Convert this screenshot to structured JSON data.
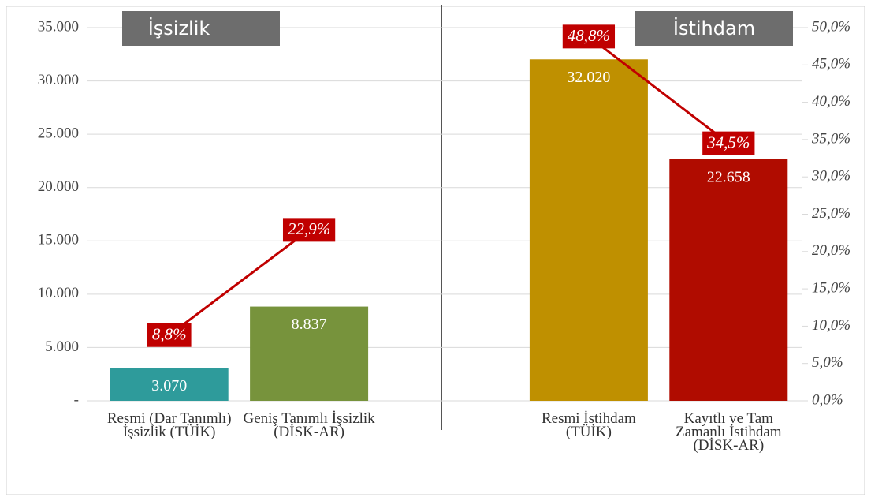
{
  "chart_data": {
    "type": "bar",
    "categories": [
      "Resmi (Dar Tanımlı) İşsizlik (TÜİK)",
      "Geniş Tanımlı İşsizlik (DİSK-AR)",
      null,
      "Resmi İstihdam (TÜİK)",
      "Kayıtlı ve Tam Zamanlı İstihdam (DİSK-AR)"
    ],
    "annotations": [
      "İşsizlik",
      "İstihdam"
    ],
    "series": [
      {
        "type": "bar",
        "colors": [
          "#2e9b9b",
          "#77933c",
          "#bf9000",
          "#b00c00"
        ],
        "colors_for": [
          0,
          1,
          3,
          4
        ],
        "values": [
          3070,
          8837,
          null,
          32020,
          22658
        ],
        "value_labels": [
          "3.070",
          "8.837",
          null,
          "32.020",
          "22.658"
        ]
      },
      {
        "type": "line",
        "axis": "y2",
        "color": "#c00000",
        "values": [
          8.8,
          22.9,
          null,
          48.8,
          34.5
        ],
        "value_labels": [
          "8,8%",
          "22,9%",
          null,
          "48,8%",
          "34,5%"
        ]
      }
    ],
    "ylim": [
      0,
      35000
    ],
    "yticks": [
      {
        "value": 0,
        "label": "-"
      },
      {
        "value": 5000,
        "label": "5.000"
      },
      {
        "value": 10000,
        "label": "10.000"
      },
      {
        "value": 15000,
        "label": "15.000"
      },
      {
        "value": 20000,
        "label": "20.000"
      },
      {
        "value": 25000,
        "label": "25.000"
      },
      {
        "value": 30000,
        "label": "30.000"
      },
      {
        "value": 35000,
        "label": "35.000"
      }
    ],
    "y2lim": [
      0,
      50
    ],
    "y2ticks": [
      {
        "value": 0,
        "label": "0,0%"
      },
      {
        "value": 5,
        "label": "5,0%"
      },
      {
        "value": 10,
        "label": "10,0%"
      },
      {
        "value": 15,
        "label": "15,0%"
      },
      {
        "value": 20,
        "label": "20,0%"
      },
      {
        "value": 25,
        "label": "25,0%"
      },
      {
        "value": 30,
        "label": "30,0%"
      },
      {
        "value": 35,
        "label": "35,0%"
      },
      {
        "value": 40,
        "label": "40,0%"
      },
      {
        "value": 45,
        "label": "45,0%"
      },
      {
        "value": 50,
        "label": "50,0%"
      }
    ],
    "grid": true
  }
}
